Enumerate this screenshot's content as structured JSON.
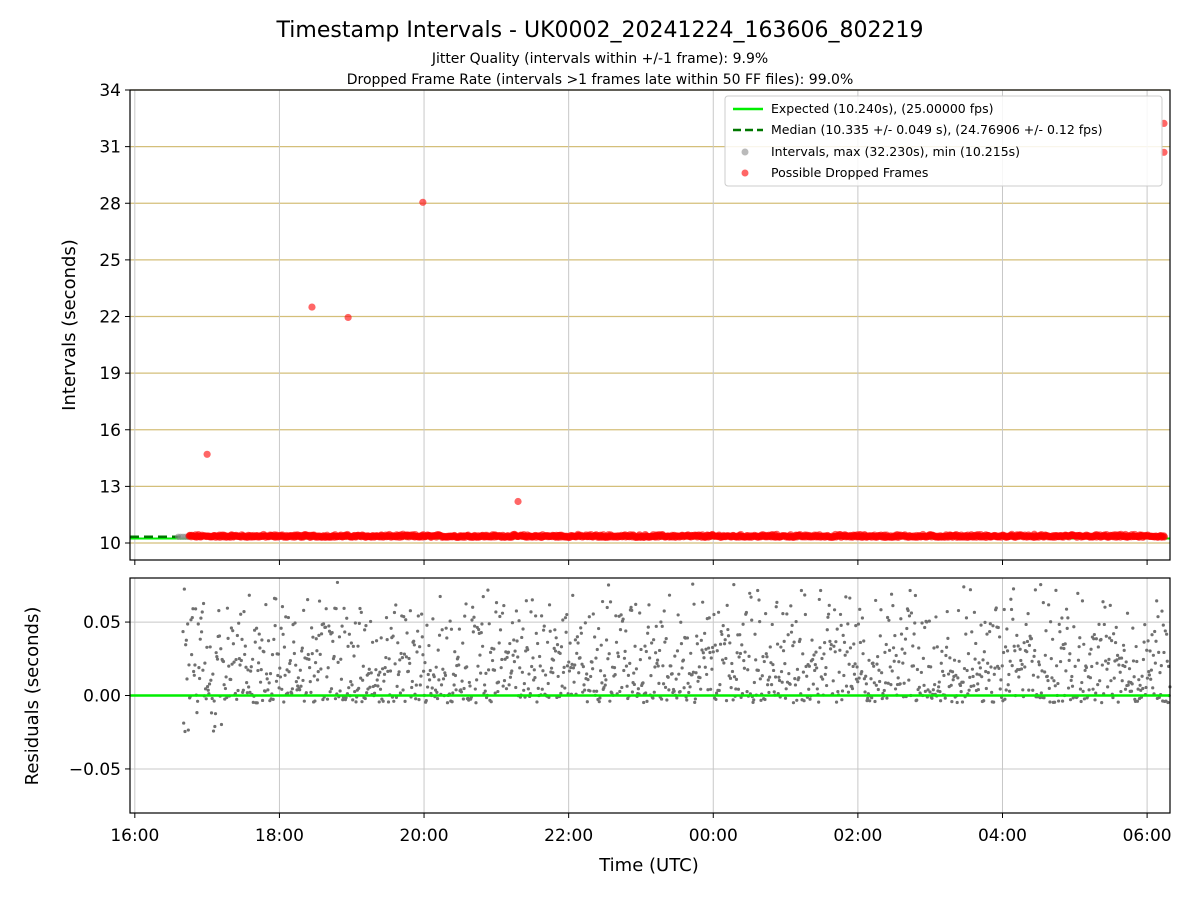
{
  "title": "Timestamp Intervals - UK0002_20241224_163606_802219",
  "subtitle_1": "Jitter Quality (intervals within +/-1 frame): 9.9%",
  "subtitle_2": "Dropped Frame Rate (intervals >1 frames late within 50 FF files): 99.0%",
  "colors": {
    "expected": "#00ee00",
    "median": "#007700",
    "intervals": "#8c8c8c",
    "dropped": "#ff0000",
    "hgrid_top": "#d4bf7a",
    "grid": "#c8c8c8",
    "residual_dots": "#707070"
  },
  "chart_data": [
    {
      "type": "scatter",
      "ylabel": "Intervals (seconds)",
      "ylim": [
        9.1,
        34
      ],
      "yticks": [
        "10",
        "13",
        "16",
        "19",
        "22",
        "25",
        "28",
        "31",
        "34"
      ],
      "legend_position": "top-right",
      "legend": [
        "Expected (10.240s), (25.00000 fps)",
        "Median (10.335 +/- 0.049 s), (24.76906 +/- 0.12 fps)",
        "Intervals, max (32.230s), min (10.215s)",
        "Possible Dropped Frames"
      ],
      "expected_interval": 10.24,
      "median_interval": 10.335,
      "dropped_outliers": [
        {
          "t": "2024-12-24 17:00",
          "v": 14.7
        },
        {
          "t": "2024-12-24 18:27",
          "v": 22.5
        },
        {
          "t": "2024-12-24 18:57",
          "v": 21.95
        },
        {
          "t": "2024-12-24 19:59",
          "v": 28.05
        },
        {
          "t": "2024-12-24 21:18",
          "v": 12.2
        },
        {
          "t": "2024-12-25 06:14",
          "v": 32.23
        },
        {
          "t": "2024-12-25 06:14",
          "v": 30.7
        }
      ],
      "dropped_band": {
        "start": "2024-12-24 16:45",
        "end": "2024-12-25 06:15",
        "min": 10.27,
        "max": 10.52
      },
      "intervals_visible": {
        "start": "2024-12-24 16:36",
        "end": "2024-12-24 16:45",
        "value": 10.33
      }
    },
    {
      "type": "scatter",
      "ylabel": "Residuals (seconds)",
      "xlabel": "Time (UTC)",
      "ylim": [
        -0.08,
        0.08
      ],
      "yticks": [
        "0.05",
        "0.00",
        "−0.05"
      ],
      "xlim": [
        "2024-12-24 15:56",
        "2024-12-25 06:19"
      ],
      "xticks": [
        "16:00",
        "18:00",
        "20:00",
        "22:00",
        "00:00",
        "02:00",
        "04:00",
        "06:00"
      ],
      "residual_zero": 0.0,
      "residual_range": {
        "start": "2024-12-24 16:36",
        "end": "2024-12-25 06:19",
        "min": -0.025,
        "max": 0.08
      }
    }
  ]
}
